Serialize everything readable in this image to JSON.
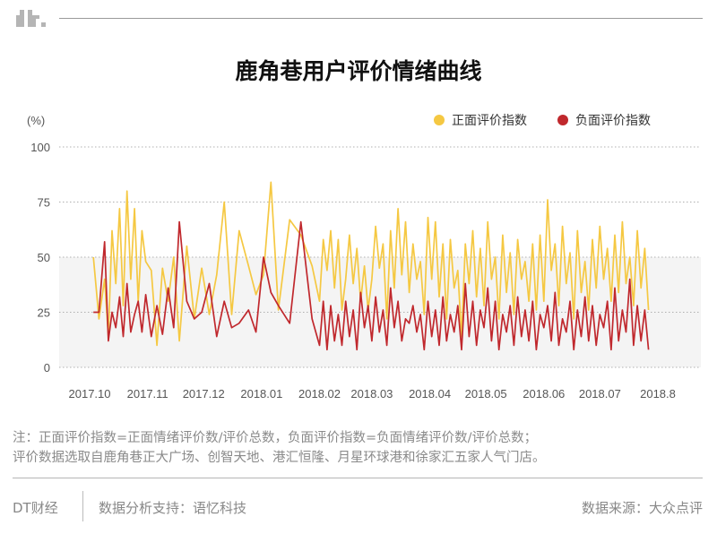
{
  "title": "鹿角巷用户评价情绪曲线",
  "logo_icon": "dt-logo-icon",
  "note": {
    "line1": "注：正面评价指数=正面情绪评价数/评价总数，负面评价指数=负面情绪评价数/评价总数；",
    "line2": "评价数据选取自鹿角巷正大广场、创智天地、港汇恒隆、月星环球港和徐家汇五家人气门店。"
  },
  "footer": {
    "brand": "DT财经",
    "support": "数据分析支持：语忆科技",
    "source": "数据来源：大众点评"
  },
  "colors": {
    "positive": "#f5c842",
    "negative": "#c0282d",
    "band": "#f4f4f4",
    "grid": "#b0b0b0"
  },
  "chart_data": {
    "type": "line",
    "title": "鹿角巷用户评价情绪曲线",
    "ylabel": "(%)",
    "ylim": [
      0,
      100
    ],
    "yticks": [
      0,
      25,
      50,
      75,
      100
    ],
    "xlim": [
      "2017-10-01",
      "2018-08-01"
    ],
    "xticks": [
      "2017.10",
      "2017.11",
      "2017.12",
      "2018.01",
      "2018.02",
      "2018.03",
      "2018.04",
      "2018.05",
      "2018.06",
      "2018.07",
      "2018.8"
    ],
    "xtick_dates": [
      "2017-10-01",
      "2017-11-01",
      "2017-12-01",
      "2018-01-01",
      "2018-02-01",
      "2018-03-01",
      "2018-04-01",
      "2018-05-01",
      "2018-06-01",
      "2018-07-01",
      "2018-08-01"
    ],
    "legend": "top-right",
    "shaded_band": [
      0,
      50
    ],
    "grid": "horizontal dotted",
    "series": [
      {
        "name": "正面评价指数",
        "color": "#f5c842",
        "x": [
          "2017-10-03",
          "2017-10-06",
          "2017-10-09",
          "2017-10-11",
          "2017-10-13",
          "2017-10-15",
          "2017-10-17",
          "2017-10-19",
          "2017-10-21",
          "2017-10-23",
          "2017-10-25",
          "2017-10-27",
          "2017-10-29",
          "2017-10-31",
          "2017-11-03",
          "2017-11-06",
          "2017-11-09",
          "2017-11-12",
          "2017-11-15",
          "2017-11-18",
          "2017-11-22",
          "2017-11-26",
          "2017-11-30",
          "2017-12-04",
          "2017-12-08",
          "2017-12-12",
          "2017-12-16",
          "2017-12-20",
          "2017-12-25",
          "2017-12-29",
          "2018-01-02",
          "2018-01-06",
          "2018-01-10",
          "2018-01-16",
          "2018-01-22",
          "2018-01-28",
          "2018-02-01",
          "2018-02-03",
          "2018-02-05",
          "2018-02-07",
          "2018-02-09",
          "2018-02-11",
          "2018-02-13",
          "2018-02-15",
          "2018-02-17",
          "2018-02-19",
          "2018-02-21",
          "2018-02-23",
          "2018-02-25",
          "2018-02-27",
          "2018-03-01",
          "2018-03-03",
          "2018-03-05",
          "2018-03-07",
          "2018-03-09",
          "2018-03-11",
          "2018-03-13",
          "2018-03-15",
          "2018-03-17",
          "2018-03-19",
          "2018-03-21",
          "2018-03-23",
          "2018-03-25",
          "2018-03-27",
          "2018-03-29",
          "2018-03-31",
          "2018-04-02",
          "2018-04-04",
          "2018-04-06",
          "2018-04-08",
          "2018-04-10",
          "2018-04-12",
          "2018-04-14",
          "2018-04-16",
          "2018-04-18",
          "2018-04-20",
          "2018-04-22",
          "2018-04-24",
          "2018-04-26",
          "2018-04-28",
          "2018-04-30",
          "2018-05-02",
          "2018-05-04",
          "2018-05-06",
          "2018-05-08",
          "2018-05-10",
          "2018-05-12",
          "2018-05-14",
          "2018-05-16",
          "2018-05-18",
          "2018-05-20",
          "2018-05-22",
          "2018-05-24",
          "2018-05-26",
          "2018-05-28",
          "2018-05-30",
          "2018-06-01",
          "2018-06-03",
          "2018-06-05",
          "2018-06-07",
          "2018-06-09",
          "2018-06-11",
          "2018-06-13",
          "2018-06-15",
          "2018-06-17",
          "2018-06-19",
          "2018-06-21",
          "2018-06-23",
          "2018-06-25",
          "2018-06-27",
          "2018-06-29",
          "2018-07-01",
          "2018-07-03",
          "2018-07-05",
          "2018-07-07",
          "2018-07-09",
          "2018-07-11",
          "2018-07-13",
          "2018-07-15",
          "2018-07-17",
          "2018-07-19",
          "2018-07-21",
          "2018-07-23",
          "2018-07-25",
          "2018-07-27"
        ],
        "values": [
          50,
          22,
          40,
          14,
          62,
          38,
          72,
          28,
          80,
          40,
          72,
          30,
          62,
          48,
          44,
          10,
          45,
          30,
          50,
          12,
          55,
          22,
          45,
          24,
          42,
          75,
          24,
          62,
          46,
          33,
          42,
          84,
          26,
          67,
          60,
          46,
          30,
          58,
          44,
          62,
          36,
          58,
          26,
          40,
          60,
          38,
          54,
          30,
          46,
          26,
          40,
          64,
          45,
          56,
          22,
          62,
          36,
          72,
          42,
          66,
          34,
          56,
          40,
          48,
          24,
          68,
          40,
          66,
          32,
          56,
          22,
          58,
          36,
          44,
          14,
          56,
          38,
          62,
          32,
          54,
          28,
          66,
          40,
          50,
          22,
          60,
          34,
          52,
          24,
          58,
          40,
          48,
          30,
          56,
          26,
          60,
          30,
          76,
          44,
          56,
          28,
          64,
          38,
          52,
          22,
          62,
          34,
          48,
          26,
          58,
          36,
          64,
          40,
          54,
          30,
          60,
          34,
          66,
          38,
          50,
          28,
          62,
          36,
          54,
          26
        ]
      },
      {
        "name": "负面评价指数",
        "color": "#c0282d",
        "x": [
          "2017-10-03",
          "2017-10-06",
          "2017-10-09",
          "2017-10-11",
          "2017-10-13",
          "2017-10-15",
          "2017-10-17",
          "2017-10-19",
          "2017-10-21",
          "2017-10-23",
          "2017-10-25",
          "2017-10-27",
          "2017-10-29",
          "2017-10-31",
          "2017-11-03",
          "2017-11-06",
          "2017-11-09",
          "2017-11-12",
          "2017-11-15",
          "2017-11-18",
          "2017-11-22",
          "2017-11-26",
          "2017-11-30",
          "2017-12-04",
          "2017-12-08",
          "2017-12-12",
          "2017-12-16",
          "2017-12-20",
          "2017-12-25",
          "2017-12-29",
          "2018-01-02",
          "2018-01-06",
          "2018-01-10",
          "2018-01-16",
          "2018-01-22",
          "2018-01-28",
          "2018-02-01",
          "2018-02-03",
          "2018-02-05",
          "2018-02-07",
          "2018-02-09",
          "2018-02-11",
          "2018-02-13",
          "2018-02-15",
          "2018-02-17",
          "2018-02-19",
          "2018-02-21",
          "2018-02-23",
          "2018-02-25",
          "2018-02-27",
          "2018-03-01",
          "2018-03-03",
          "2018-03-05",
          "2018-03-07",
          "2018-03-09",
          "2018-03-11",
          "2018-03-13",
          "2018-03-15",
          "2018-03-17",
          "2018-03-19",
          "2018-03-21",
          "2018-03-23",
          "2018-03-25",
          "2018-03-27",
          "2018-03-29",
          "2018-03-31",
          "2018-04-02",
          "2018-04-04",
          "2018-04-06",
          "2018-04-08",
          "2018-04-10",
          "2018-04-12",
          "2018-04-14",
          "2018-04-16",
          "2018-04-18",
          "2018-04-20",
          "2018-04-22",
          "2018-04-24",
          "2018-04-26",
          "2018-04-28",
          "2018-04-30",
          "2018-05-02",
          "2018-05-04",
          "2018-05-06",
          "2018-05-08",
          "2018-05-10",
          "2018-05-12",
          "2018-05-14",
          "2018-05-16",
          "2018-05-18",
          "2018-05-20",
          "2018-05-22",
          "2018-05-24",
          "2018-05-26",
          "2018-05-28",
          "2018-05-30",
          "2018-06-01",
          "2018-06-03",
          "2018-06-05",
          "2018-06-07",
          "2018-06-09",
          "2018-06-11",
          "2018-06-13",
          "2018-06-15",
          "2018-06-17",
          "2018-06-19",
          "2018-06-21",
          "2018-06-23",
          "2018-06-25",
          "2018-06-27",
          "2018-06-29",
          "2018-07-01",
          "2018-07-03",
          "2018-07-05",
          "2018-07-07",
          "2018-07-09",
          "2018-07-11",
          "2018-07-13",
          "2018-07-15",
          "2018-07-17",
          "2018-07-19",
          "2018-07-21",
          "2018-07-23",
          "2018-07-25",
          "2018-07-27"
        ],
        "values": [
          25,
          25,
          57,
          12,
          25,
          18,
          32,
          14,
          38,
          16,
          24,
          30,
          16,
          33,
          14,
          28,
          15,
          36,
          18,
          66,
          30,
          22,
          25,
          38,
          14,
          30,
          18,
          20,
          26,
          16,
          50,
          34,
          28,
          20,
          66,
          22,
          10,
          30,
          8,
          28,
          12,
          24,
          10,
          30,
          14,
          26,
          8,
          34,
          18,
          28,
          12,
          32,
          16,
          26,
          10,
          36,
          18,
          30,
          12,
          22,
          20,
          28,
          16,
          24,
          8,
          30,
          14,
          26,
          10,
          32,
          12,
          24,
          16,
          28,
          8,
          38,
          14,
          30,
          10,
          26,
          18,
          36,
          12,
          30,
          8,
          24,
          16,
          28,
          10,
          32,
          14,
          26,
          12,
          30,
          8,
          24,
          18,
          28,
          12,
          34,
          10,
          22,
          16,
          30,
          8,
          26,
          14,
          32,
          12,
          28,
          10,
          24,
          18,
          30,
          8,
          36,
          12,
          26,
          16,
          40,
          10,
          28,
          12,
          26,
          8
        ]
      }
    ]
  }
}
